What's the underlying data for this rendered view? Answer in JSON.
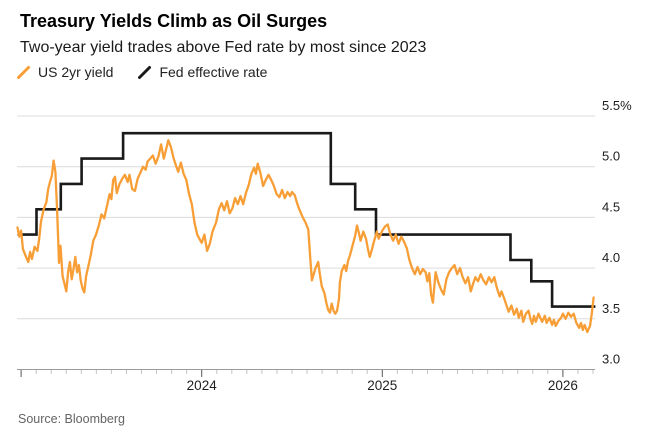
{
  "header": {
    "title": "Treasury Yields Climb as Oil Surges",
    "subtitle": "Two-year yield trades above Fed rate by most since 2023"
  },
  "legend": [
    {
      "label": "US 2yr yield",
      "color": "#F79E36"
    },
    {
      "label": "Fed effective rate",
      "color": "#1A1A1A"
    }
  ],
  "footer": {
    "source": "Source: Bloomberg"
  },
  "colors": {
    "grid": "#DCDCDC",
    "axis": "#9B9B9B",
    "minor_tick": "#C4C4C4",
    "major_tick": "#555555",
    "axis_text": "#1F1F1F"
  },
  "chart_data": {
    "type": "line",
    "title": "Treasury Yields Climb as Oil Surges",
    "subtitle": "Two-year yield trades above Fed rate by most since 2023",
    "source": "Source: Bloomberg",
    "legend_position": "top-left",
    "grid": true,
    "x_axis": {
      "tick_values": [
        2024,
        2025,
        2026
      ],
      "tick_labels": [
        "2024",
        "2025",
        "2026"
      ],
      "range": [
        2022.98,
        2026.18
      ],
      "minor_ticks": "monthly"
    },
    "y_axis": {
      "tick_values": [
        3.0,
        3.5,
        4.0,
        4.5,
        5.0,
        5.5
      ],
      "tick_labels": [
        "3.0",
        "3.5",
        "4.0",
        "4.5",
        "5.0",
        "5.5%"
      ],
      "range": [
        3.0,
        5.5
      ],
      "unit": "percent"
    },
    "series": [
      {
        "name": "US 2yr yield",
        "style": "line",
        "color": "#F79E36",
        "points": [
          [
            2022.98,
            4.4
          ],
          [
            2022.99,
            4.31
          ],
          [
            2023.0,
            4.37
          ],
          [
            2023.01,
            4.19
          ],
          [
            2023.025,
            4.12
          ],
          [
            2023.04,
            4.06
          ],
          [
            2023.05,
            4.16
          ],
          [
            2023.06,
            4.09
          ],
          [
            2023.075,
            4.21
          ],
          [
            2023.09,
            4.17
          ],
          [
            2023.1,
            4.29
          ],
          [
            2023.11,
            4.46
          ],
          [
            2023.125,
            4.58
          ],
          [
            2023.14,
            4.65
          ],
          [
            2023.15,
            4.78
          ],
          [
            2023.16,
            4.85
          ],
          [
            2023.17,
            4.91
          ],
          [
            2023.18,
            5.06
          ],
          [
            2023.19,
            4.95
          ],
          [
            2023.2,
            4.55
          ],
          [
            2023.21,
            4.05
          ],
          [
            2023.218,
            4.22
          ],
          [
            2023.23,
            3.92
          ],
          [
            2023.24,
            3.85
          ],
          [
            2023.25,
            3.77
          ],
          [
            2023.26,
            3.96
          ],
          [
            2023.27,
            4.06
          ],
          [
            2023.28,
            3.89
          ],
          [
            2023.29,
            3.99
          ],
          [
            2023.3,
            4.11
          ],
          [
            2023.31,
            3.96
          ],
          [
            2023.32,
            4.03
          ],
          [
            2023.33,
            3.88
          ],
          [
            2023.34,
            3.8
          ],
          [
            2023.35,
            3.76
          ],
          [
            2023.36,
            3.92
          ],
          [
            2023.37,
            4.0
          ],
          [
            2023.385,
            4.12
          ],
          [
            2023.4,
            4.27
          ],
          [
            2023.415,
            4.33
          ],
          [
            2023.43,
            4.42
          ],
          [
            2023.445,
            4.53
          ],
          [
            2023.46,
            4.49
          ],
          [
            2023.475,
            4.61
          ],
          [
            2023.49,
            4.73
          ],
          [
            2023.5,
            4.68
          ],
          [
            2023.51,
            4.87
          ],
          [
            2023.52,
            4.9
          ],
          [
            2023.53,
            4.74
          ],
          [
            2023.545,
            4.83
          ],
          [
            2023.56,
            4.88
          ],
          [
            2023.575,
            4.92
          ],
          [
            2023.59,
            4.85
          ],
          [
            2023.6,
            4.92
          ],
          [
            2023.615,
            4.78
          ],
          [
            2023.63,
            4.76
          ],
          [
            2023.645,
            4.88
          ],
          [
            2023.66,
            4.94
          ],
          [
            2023.675,
            5.0
          ],
          [
            2023.69,
            4.97
          ],
          [
            2023.7,
            5.05
          ],
          [
            2023.715,
            5.08
          ],
          [
            2023.73,
            5.11
          ],
          [
            2023.745,
            5.03
          ],
          [
            2023.76,
            5.1
          ],
          [
            2023.775,
            5.22
          ],
          [
            2023.79,
            5.08
          ],
          [
            2023.8,
            5.15
          ],
          [
            2023.815,
            5.26
          ],
          [
            2023.83,
            5.19
          ],
          [
            2023.845,
            5.08
          ],
          [
            2023.86,
            5.0
          ],
          [
            2023.87,
            4.95
          ],
          [
            2023.885,
            5.04
          ],
          [
            2023.9,
            4.93
          ],
          [
            2023.915,
            4.87
          ],
          [
            2023.93,
            4.73
          ],
          [
            2023.945,
            4.63
          ],
          [
            2023.96,
            4.45
          ],
          [
            2023.975,
            4.33
          ],
          [
            2023.99,
            4.28
          ],
          [
            2024.0,
            4.25
          ],
          [
            2024.015,
            4.33
          ],
          [
            2024.03,
            4.17
          ],
          [
            2024.045,
            4.24
          ],
          [
            2024.06,
            4.36
          ],
          [
            2024.08,
            4.45
          ],
          [
            2024.095,
            4.58
          ],
          [
            2024.11,
            4.64
          ],
          [
            2024.125,
            4.57
          ],
          [
            2024.14,
            4.66
          ],
          [
            2024.155,
            4.54
          ],
          [
            2024.17,
            4.59
          ],
          [
            2024.185,
            4.69
          ],
          [
            2024.2,
            4.63
          ],
          [
            2024.215,
            4.71
          ],
          [
            2024.23,
            4.63
          ],
          [
            2024.245,
            4.74
          ],
          [
            2024.26,
            4.82
          ],
          [
            2024.275,
            4.93
          ],
          [
            2024.29,
            4.99
          ],
          [
            2024.3,
            4.93
          ],
          [
            2024.31,
            5.03
          ],
          [
            2024.325,
            4.94
          ],
          [
            2024.34,
            4.81
          ],
          [
            2024.355,
            4.87
          ],
          [
            2024.37,
            4.92
          ],
          [
            2024.385,
            4.87
          ],
          [
            2024.4,
            4.81
          ],
          [
            2024.415,
            4.73
          ],
          [
            2024.43,
            4.7
          ],
          [
            2024.445,
            4.77
          ],
          [
            2024.46,
            4.69
          ],
          [
            2024.475,
            4.75
          ],
          [
            2024.49,
            4.71
          ],
          [
            2024.5,
            4.75
          ],
          [
            2024.515,
            4.72
          ],
          [
            2024.53,
            4.63
          ],
          [
            2024.545,
            4.56
          ],
          [
            2024.56,
            4.5
          ],
          [
            2024.575,
            4.45
          ],
          [
            2024.59,
            4.38
          ],
          [
            2024.6,
            4.12
          ],
          [
            2024.61,
            3.88
          ],
          [
            2024.62,
            3.94
          ],
          [
            2024.63,
            4.0
          ],
          [
            2024.645,
            4.06
          ],
          [
            2024.655,
            3.93
          ],
          [
            2024.665,
            3.82
          ],
          [
            2024.68,
            3.75
          ],
          [
            2024.69,
            3.66
          ],
          [
            2024.7,
            3.59
          ],
          [
            2024.71,
            3.56
          ],
          [
            2024.72,
            3.65
          ],
          [
            2024.73,
            3.58
          ],
          [
            2024.74,
            3.55
          ],
          [
            2024.75,
            3.58
          ],
          [
            2024.76,
            3.7
          ],
          [
            2024.765,
            3.86
          ],
          [
            2024.775,
            3.97
          ],
          [
            2024.79,
            4.03
          ],
          [
            2024.8,
            3.97
          ],
          [
            2024.81,
            4.07
          ],
          [
            2024.82,
            4.12
          ],
          [
            2024.835,
            4.22
          ],
          [
            2024.85,
            4.32
          ],
          [
            2024.86,
            4.42
          ],
          [
            2024.87,
            4.35
          ],
          [
            2024.88,
            4.27
          ],
          [
            2024.895,
            4.36
          ],
          [
            2024.91,
            4.29
          ],
          [
            2024.92,
            4.19
          ],
          [
            2024.93,
            4.11
          ],
          [
            2024.94,
            4.17
          ],
          [
            2024.955,
            4.27
          ],
          [
            2024.97,
            4.36
          ],
          [
            2024.98,
            4.29
          ],
          [
            2025.0,
            4.37
          ],
          [
            2025.015,
            4.41
          ],
          [
            2025.03,
            4.43
          ],
          [
            2025.045,
            4.33
          ],
          [
            2025.06,
            4.27
          ],
          [
            2025.075,
            4.33
          ],
          [
            2025.09,
            4.24
          ],
          [
            2025.105,
            4.31
          ],
          [
            2025.12,
            4.26
          ],
          [
            2025.135,
            4.2
          ],
          [
            2025.15,
            4.08
          ],
          [
            2025.165,
            4.0
          ],
          [
            2025.18,
            3.94
          ],
          [
            2025.195,
            4.01
          ],
          [
            2025.21,
            3.94
          ],
          [
            2025.225,
            3.99
          ],
          [
            2025.24,
            3.96
          ],
          [
            2025.25,
            3.87
          ],
          [
            2025.26,
            3.95
          ],
          [
            2025.27,
            3.74
          ],
          [
            2025.28,
            3.66
          ],
          [
            2025.295,
            3.96
          ],
          [
            2025.31,
            3.86
          ],
          [
            2025.325,
            3.79
          ],
          [
            2025.34,
            3.74
          ],
          [
            2025.355,
            3.89
          ],
          [
            2025.37,
            3.96
          ],
          [
            2025.385,
            4.0
          ],
          [
            2025.4,
            4.03
          ],
          [
            2025.415,
            3.94
          ],
          [
            2025.43,
            4.0
          ],
          [
            2025.445,
            3.91
          ],
          [
            2025.46,
            3.85
          ],
          [
            2025.475,
            3.91
          ],
          [
            2025.49,
            3.77
          ],
          [
            2025.5,
            3.83
          ],
          [
            2025.515,
            3.91
          ],
          [
            2025.53,
            3.87
          ],
          [
            2025.545,
            3.94
          ],
          [
            2025.56,
            3.88
          ],
          [
            2025.575,
            3.84
          ],
          [
            2025.59,
            3.91
          ],
          [
            2025.605,
            3.86
          ],
          [
            2025.62,
            3.91
          ],
          [
            2025.635,
            3.8
          ],
          [
            2025.65,
            3.72
          ],
          [
            2025.66,
            3.77
          ],
          [
            2025.675,
            3.7
          ],
          [
            2025.69,
            3.62
          ],
          [
            2025.7,
            3.57
          ],
          [
            2025.715,
            3.63
          ],
          [
            2025.73,
            3.54
          ],
          [
            2025.745,
            3.6
          ],
          [
            2025.755,
            3.51
          ],
          [
            2025.77,
            3.58
          ],
          [
            2025.78,
            3.47
          ],
          [
            2025.795,
            3.55
          ],
          [
            2025.81,
            3.58
          ],
          [
            2025.82,
            3.5
          ],
          [
            2025.83,
            3.45
          ],
          [
            2025.84,
            3.53
          ],
          [
            2025.85,
            3.47
          ],
          [
            2025.865,
            3.55
          ],
          [
            2025.875,
            3.51
          ],
          [
            2025.885,
            3.47
          ],
          [
            2025.9,
            3.53
          ],
          [
            2025.91,
            3.46
          ],
          [
            2025.925,
            3.51
          ],
          [
            2025.94,
            3.44
          ],
          [
            2025.95,
            3.49
          ],
          [
            2025.96,
            3.43
          ],
          [
            2025.975,
            3.48
          ],
          [
            2025.99,
            3.51
          ],
          [
            2026.0,
            3.55
          ],
          [
            2026.015,
            3.5
          ],
          [
            2026.03,
            3.56
          ],
          [
            2026.045,
            3.52
          ],
          [
            2026.06,
            3.55
          ],
          [
            2026.075,
            3.46
          ],
          [
            2026.09,
            3.41
          ],
          [
            2026.1,
            3.46
          ],
          [
            2026.11,
            3.39
          ],
          [
            2026.12,
            3.44
          ],
          [
            2026.135,
            3.37
          ],
          [
            2026.15,
            3.43
          ],
          [
            2026.16,
            3.55
          ],
          [
            2026.17,
            3.71
          ]
        ]
      },
      {
        "name": "Fed effective rate",
        "style": "step",
        "color": "#1A1A1A",
        "end_t": 2026.18,
        "points": [
          [
            2022.98,
            4.33
          ],
          [
            2023.085,
            4.58
          ],
          [
            2023.22,
            4.83
          ],
          [
            2023.335,
            5.08
          ],
          [
            2023.565,
            5.33
          ],
          [
            2024.715,
            4.83
          ],
          [
            2024.85,
            4.58
          ],
          [
            2024.965,
            4.33
          ],
          [
            2025.71,
            4.08
          ],
          [
            2025.825,
            3.87
          ],
          [
            2025.94,
            3.62
          ]
        ]
      }
    ]
  }
}
